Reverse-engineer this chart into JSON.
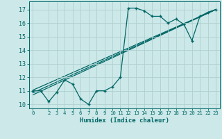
{
  "title": "",
  "xlabel": "Humidex (Indice chaleur)",
  "bg_color": "#cce8e8",
  "grid_color": "#b0d0d0",
  "line_color": "#006666",
  "xlim": [
    -0.5,
    23.5
  ],
  "ylim": [
    9.7,
    17.6
  ],
  "xticks": [
    0,
    2,
    3,
    4,
    5,
    6,
    7,
    8,
    9,
    10,
    11,
    12,
    13,
    14,
    15,
    16,
    17,
    18,
    19,
    20,
    21,
    22,
    23
  ],
  "xticklabels": [
    "0",
    "2",
    "3",
    "4",
    "5",
    "6",
    "7",
    "8",
    "9",
    "10",
    "11",
    "12",
    "13",
    "14",
    "15",
    "16",
    "17",
    "18",
    "19",
    "20",
    "21",
    "22",
    "23"
  ],
  "yticks": [
    10,
    11,
    12,
    13,
    14,
    15,
    16,
    17
  ],
  "data_x": [
    0,
    1,
    2,
    3,
    4,
    5,
    6,
    7,
    8,
    9,
    10,
    11,
    12,
    13,
    14,
    15,
    16,
    17,
    18,
    19,
    20,
    21,
    22,
    23
  ],
  "data_y": [
    11.0,
    11.0,
    10.2,
    10.9,
    11.8,
    11.5,
    10.4,
    10.0,
    11.0,
    11.0,
    11.3,
    12.0,
    17.1,
    17.1,
    16.9,
    16.5,
    16.5,
    16.0,
    16.3,
    15.9,
    14.7,
    16.5,
    16.8,
    17.0
  ],
  "trend_lines": [
    {
      "x": [
        0,
        23
      ],
      "y": [
        10.7,
        17.0
      ]
    },
    {
      "x": [
        0,
        23
      ],
      "y": [
        10.85,
        17.0
      ]
    },
    {
      "x": [
        0,
        23
      ],
      "y": [
        11.05,
        17.0
      ]
    }
  ]
}
